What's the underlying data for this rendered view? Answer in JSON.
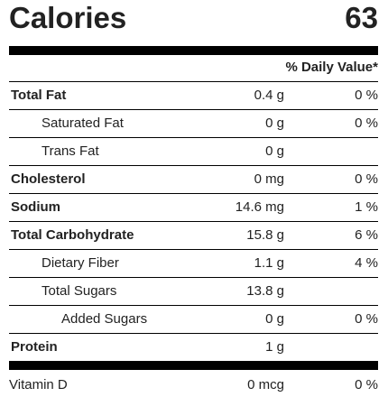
{
  "calories": {
    "label": "Calories",
    "value": "63"
  },
  "header": {
    "daily_value": "% Daily Value*"
  },
  "nutrients": [
    {
      "name": "Total Fat",
      "amount": "0.4 g",
      "dv": "0 %",
      "bold": true,
      "indent": 0
    },
    {
      "name": "Saturated Fat",
      "amount": "0 g",
      "dv": "0 %",
      "bold": false,
      "indent": 1
    },
    {
      "name": "Trans Fat",
      "amount": "0 g",
      "dv": "",
      "bold": false,
      "indent": 1
    },
    {
      "name": "Cholesterol",
      "amount": "0 mg",
      "dv": "0 %",
      "bold": true,
      "indent": 0
    },
    {
      "name": "Sodium",
      "amount": "14.6 mg",
      "dv": "1 %",
      "bold": true,
      "indent": 0
    },
    {
      "name": "Total Carbohydrate",
      "amount": "15.8 g",
      "dv": "6 %",
      "bold": true,
      "indent": 0
    },
    {
      "name": "Dietary Fiber",
      "amount": "1.1 g",
      "dv": "4 %",
      "bold": false,
      "indent": 1
    },
    {
      "name": "Total Sugars",
      "amount": "13.8 g",
      "dv": "",
      "bold": false,
      "indent": 1
    },
    {
      "name": "Added Sugars",
      "amount": "0 g",
      "dv": "0 %",
      "bold": false,
      "indent": 2
    },
    {
      "name": "Protein",
      "amount": "1 g",
      "dv": "",
      "bold": true,
      "indent": 0
    }
  ],
  "micronutrients": [
    {
      "name": "Vitamin D",
      "amount": "0 mcg",
      "dv": "0 %"
    }
  ]
}
